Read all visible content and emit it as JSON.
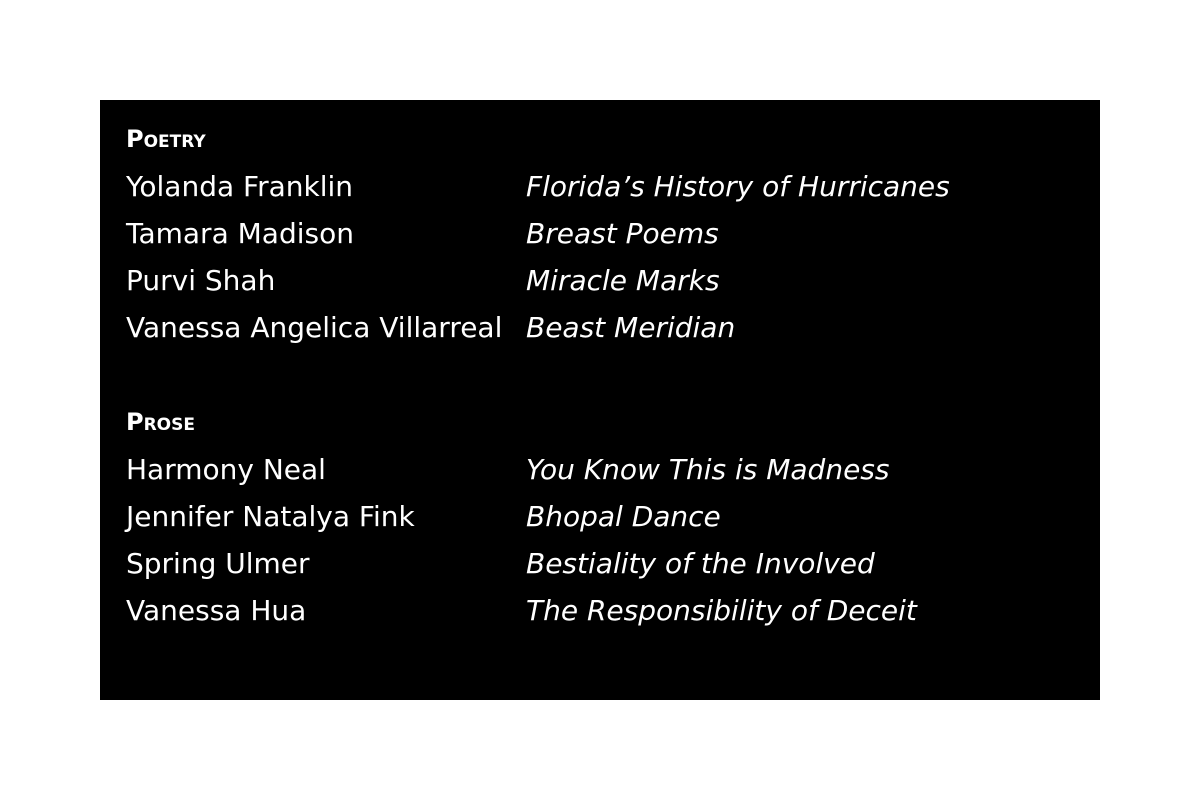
{
  "sections": [
    {
      "heading": "Poetry",
      "entries": [
        {
          "author": "Yolanda Franklin",
          "title": "Florida’s History of Hurricanes"
        },
        {
          "author": "Tamara Madison",
          "title": "Breast Poems"
        },
        {
          "author": "Purvi Shah",
          "title": "Miracle Marks"
        },
        {
          "author": "Vanessa Angelica Villarreal",
          "title": "Beast Meridian"
        }
      ]
    },
    {
      "heading": "Prose",
      "entries": [
        {
          "author": "Harmony Neal",
          "title": "You Know This is Madness"
        },
        {
          "author": "Jennifer Natalya Fink",
          "title": "Bhopal Dance"
        },
        {
          "author": "Spring Ulmer",
          "title": "Bestiality of the Involved"
        },
        {
          "author": "Vanessa Hua",
          "title": "The Responsibility of Deceit"
        }
      ]
    }
  ]
}
